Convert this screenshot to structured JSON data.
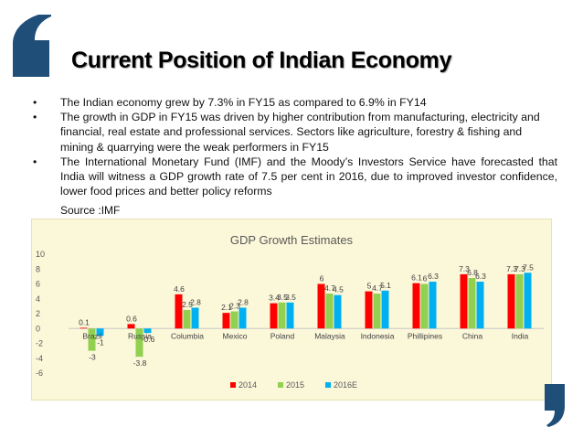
{
  "slide": {
    "title": "Current Position of Indian Economy",
    "bullets": [
      "The Indian economy grew by 7.3% in FY15 as compared to 6.9% in FY14",
      "The growth in GDP in FY15 was driven by higher contribution from manufacturing, electricity and financial, real estate and professional services. Sectors like agriculture, forestry & fishing and mining & quarrying were the weak performers in FY15",
      "The International Monetary Fund (IMF) and the Moody’s Investors Service have forecasted that India will witness a GDP growth rate of 7.5 per cent in 2016, due to improved investor confidence, lower food prices and better policy reforms"
    ],
    "bullet_marker": "•",
    "source": "Source :IMF",
    "accent_color": "#1f4e79"
  },
  "chart_data": {
    "type": "bar",
    "title": "GDP Growth Estimates",
    "categories": [
      "Brazil",
      "Russia",
      "Columbia",
      "Mexico",
      "Poland",
      "Malaysia",
      "Indonesia",
      "Phillipines",
      "China",
      "India"
    ],
    "series": [
      {
        "name": "2014",
        "color": "#ff0000",
        "values": [
          0.1,
          0.6,
          4.6,
          2.1,
          3.4,
          6,
          5,
          6.1,
          7.3,
          7.3
        ]
      },
      {
        "name": "2015",
        "color": "#92d050",
        "values": [
          -3,
          -3.8,
          2.5,
          2.3,
          3.5,
          4.7,
          4.7,
          6,
          6.8,
          7.3
        ]
      },
      {
        "name": "2016E",
        "color": "#00b0f0",
        "values": [
          -1,
          -0.6,
          2.8,
          2.8,
          3.5,
          4.5,
          5.1,
          6.3,
          6.3,
          7.5
        ]
      }
    ],
    "data_labels": [
      [
        "0.1",
        "-3",
        "-1"
      ],
      [
        "0.6",
        "-3.8",
        "-0.6"
      ],
      [
        "4.6",
        "2.5",
        "2.8"
      ],
      [
        "2.1",
        "2.3",
        "2.8"
      ],
      [
        "3.4",
        "3.5",
        "3.5"
      ],
      [
        "6",
        "4.7",
        "4.5"
      ],
      [
        "5",
        "4.7",
        "5.1"
      ],
      [
        "6.1",
        "6",
        "6.3"
      ],
      [
        "7.3",
        "6.8",
        "6.3"
      ],
      [
        "7.3",
        "7.3",
        "7.5"
      ]
    ],
    "ylim": [
      -6,
      10
    ],
    "yticks": [
      -6,
      -4,
      -2,
      0,
      2,
      4,
      6,
      8,
      10
    ],
    "xlabel": "",
    "ylabel": "",
    "grid": false,
    "legend_position": "bottom"
  }
}
